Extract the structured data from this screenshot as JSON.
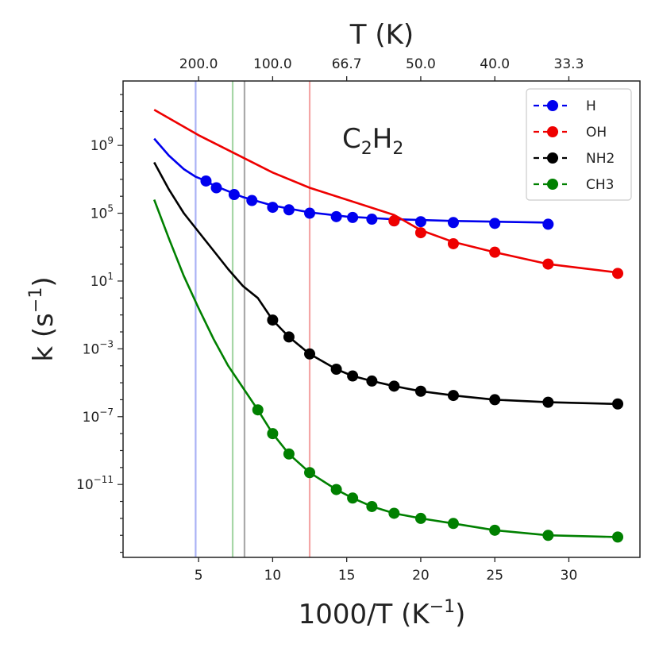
{
  "chart_data": {
    "type": "line",
    "title": "T (K)",
    "annotation": "C2H2",
    "annotation_main": "C",
    "annotation_sub1": "2",
    "annotation_mid": "H",
    "annotation_sub2": "2",
    "xlabel": "1000/T (K",
    "xlabel_sup": "−1",
    "xlabel_close": ")",
    "ylabel": "k (s",
    "ylabel_sup": "−1",
    "ylabel_close": ")",
    "xlim": [
      -0.1,
      34.8
    ],
    "ylim_log10": [
      -15.3,
      12.8
    ],
    "x_ticks": [
      5,
      10,
      15,
      20,
      25,
      30
    ],
    "x_tick_labels": [
      "5",
      "10",
      "15",
      "20",
      "25",
      "30"
    ],
    "y_tick_exponents": [
      9,
      5,
      1,
      -3,
      -7,
      -11
    ],
    "y_tick_base": "10",
    "y_tick_exp_labels": [
      "9",
      "5",
      "1",
      "−3",
      "−7",
      "−11"
    ],
    "top_ticks_invT": [
      5,
      10,
      15,
      20,
      25,
      30
    ],
    "top_tick_labels": [
      "200.0",
      "100.0",
      "66.7",
      "50.0",
      "40.0",
      "33.3"
    ],
    "vertical_lines": [
      {
        "x": 4.8,
        "color": "#aab2f5"
      },
      {
        "x": 7.3,
        "color": "#a6d6a6"
      },
      {
        "x": 8.1,
        "color": "#aaaaaa"
      },
      {
        "x": 12.5,
        "color": "#f4a6a6"
      }
    ],
    "series": [
      {
        "name": "H",
        "color": "#0000ee",
        "line": {
          "x": [
            2.0,
            3.0,
            4.0,
            4.8,
            5.5,
            6.0,
            7.0,
            8.0,
            10.0,
            12.5,
            15.0,
            18.0,
            22.0,
            25.0,
            28.5
          ],
          "log10k": [
            9.4,
            8.4,
            7.6,
            7.15,
            6.9,
            6.65,
            6.3,
            5.95,
            5.45,
            5.05,
            4.8,
            4.65,
            4.55,
            4.5,
            4.45
          ]
        },
        "points": {
          "x": [
            5.5,
            6.2,
            7.4,
            8.6,
            10.0,
            11.1,
            12.5,
            14.3,
            15.4,
            16.7,
            18.2,
            20.0,
            22.2,
            25.0,
            28.6
          ],
          "log10k": [
            6.9,
            6.5,
            6.1,
            5.75,
            5.35,
            5.2,
            5.0,
            4.8,
            4.75,
            4.65,
            4.55,
            4.5,
            4.45,
            4.4,
            4.35
          ]
        }
      },
      {
        "name": "OH",
        "color": "#ee0000",
        "line": {
          "x": [
            2.0,
            5.0,
            7.5,
            10.0,
            12.5,
            15.0,
            18.2,
            20.0,
            22.2,
            25.0,
            28.6,
            33.3
          ],
          "log10k": [
            11.1,
            9.6,
            8.5,
            7.4,
            6.5,
            5.8,
            4.9,
            4.0,
            3.3,
            2.7,
            2.0,
            1.5
          ]
        },
        "points": {
          "x": [
            18.2,
            20.0,
            22.2,
            25.0,
            28.6,
            33.3
          ],
          "log10k": [
            4.55,
            3.85,
            3.2,
            2.7,
            2.0,
            1.45
          ]
        }
      },
      {
        "name": "NH2",
        "color": "#000000",
        "line": {
          "x": [
            2.0,
            3.0,
            4.0,
            5.0,
            6.0,
            7.0,
            8.0,
            9.0,
            10.0,
            11.1,
            12.5,
            14.3,
            15.4,
            16.7,
            18.2,
            20.0,
            22.2,
            25.0,
            28.6,
            33.3
          ],
          "log10k": [
            8.0,
            6.4,
            5.0,
            3.9,
            2.8,
            1.7,
            0.7,
            0.0,
            -1.3,
            -2.3,
            -3.3,
            -4.2,
            -4.6,
            -4.9,
            -5.2,
            -5.5,
            -5.75,
            -6.0,
            -6.15,
            -6.25
          ]
        },
        "points": {
          "x": [
            10.0,
            11.1,
            12.5,
            14.3,
            15.4,
            16.7,
            18.2,
            20.0,
            22.2,
            25.0,
            28.6,
            33.3
          ],
          "log10k": [
            -1.3,
            -2.3,
            -3.3,
            -4.2,
            -4.6,
            -4.9,
            -5.2,
            -5.5,
            -5.75,
            -6.0,
            -6.15,
            -6.25
          ]
        }
      },
      {
        "name": "CH3",
        "color": "#008000",
        "line": {
          "x": [
            2.0,
            3.0,
            4.0,
            5.0,
            6.0,
            7.0,
            8.0,
            9.0,
            10.0,
            11.1,
            12.5,
            14.3,
            15.4,
            16.7,
            18.2,
            20.0,
            22.2,
            25.0,
            28.6,
            33.3
          ],
          "log10k": [
            5.8,
            3.5,
            1.3,
            -0.6,
            -2.4,
            -4.0,
            -5.3,
            -6.6,
            -8.0,
            -9.2,
            -10.3,
            -11.3,
            -11.8,
            -12.3,
            -12.7,
            -13.0,
            -13.3,
            -13.7,
            -14.0,
            -14.1
          ]
        },
        "points": {
          "x": [
            9.0,
            10.0,
            11.1,
            12.5,
            14.3,
            15.4,
            16.7,
            18.2,
            20.0,
            22.2,
            25.0,
            28.6,
            33.3
          ],
          "log10k": [
            -6.6,
            -8.0,
            -9.2,
            -10.3,
            -11.3,
            -11.8,
            -12.3,
            -12.7,
            -13.0,
            -13.3,
            -13.7,
            -14.0,
            -14.1
          ]
        }
      }
    ],
    "legend": {
      "placement": "top-right",
      "entries": [
        "H",
        "OH",
        "NH2",
        "CH3"
      ]
    }
  }
}
